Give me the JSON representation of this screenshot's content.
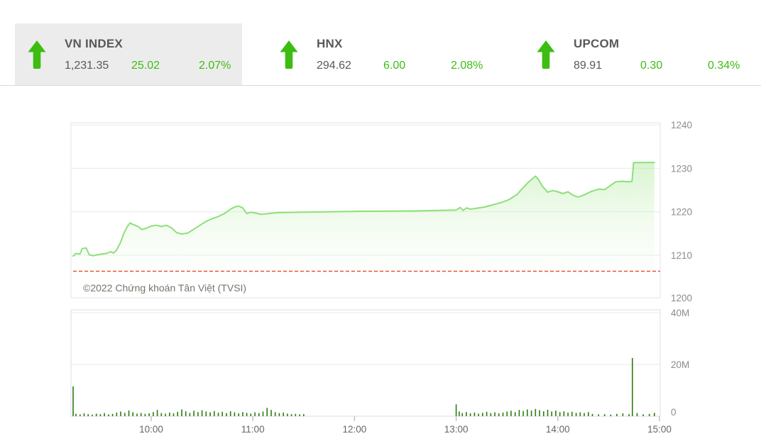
{
  "colors": {
    "up_green": "#3dbd12",
    "price_line": "#8ce07a",
    "area_fill_top": "rgba(150,226,125,0.60)",
    "area_fill_bottom": "rgba(255,255,255,0.05)",
    "volume_bar": "#2d7d12",
    "reference_red": "#e8391d",
    "grid_line": "#e9e9e9",
    "panel_border": "#e3e3e3",
    "volume_panel_border": "#d8dfe6",
    "tick_mark": "#b9c2cc",
    "axis_text": "#8c8c8c",
    "xaxis_text": "#666666",
    "value_text": "#58595b",
    "active_panel_bg": "#ececec"
  },
  "index_bar": {
    "panels": [
      {
        "id": "vnindex",
        "name": "VN INDEX",
        "value": "1,231.35",
        "change": "25.02",
        "change_percent": "2.07%",
        "direction": "up",
        "active": true
      },
      {
        "id": "hnx",
        "name": "HNX",
        "value": "294.62",
        "change": "6.00",
        "change_percent": "2.08%",
        "direction": "up",
        "active": false
      },
      {
        "id": "upcom",
        "name": "UPCOM",
        "value": "89.91",
        "change": "0.30",
        "change_percent": "0.34%",
        "direction": "up",
        "active": false
      }
    ]
  },
  "chart": {
    "copyright": "©2022 Chứng khoán Tân Việt (TVSI)"
  },
  "chart_data": [
    {
      "type": "area",
      "name": "VN-Index intraday price",
      "x_unit": "hour_of_day",
      "ylim": [
        1200,
        1243
      ],
      "yticks": [
        1240,
        1230,
        1220,
        1210,
        1200
      ],
      "xticks": [
        {
          "t": 10,
          "label": "10:00"
        },
        {
          "t": 11,
          "label": "11:00"
        },
        {
          "t": 12,
          "label": "12:00"
        },
        {
          "t": 13,
          "label": "13:00"
        },
        {
          "t": 14,
          "label": "14:00"
        },
        {
          "t": 15,
          "label": "15:00"
        }
      ],
      "reference_line": 1206.33,
      "grid": true,
      "legend": false,
      "points": [
        [
          9.232,
          1209.8
        ],
        [
          9.26,
          1210.4
        ],
        [
          9.3,
          1210.3
        ],
        [
          9.32,
          1211.5
        ],
        [
          9.36,
          1211.7
        ],
        [
          9.39,
          1210.1
        ],
        [
          9.43,
          1209.9
        ],
        [
          9.47,
          1210.1
        ],
        [
          9.52,
          1210.3
        ],
        [
          9.56,
          1210.4
        ],
        [
          9.6,
          1210.8
        ],
        [
          9.63,
          1210.5
        ],
        [
          9.66,
          1211.2
        ],
        [
          9.7,
          1213.0
        ],
        [
          9.73,
          1215.0
        ],
        [
          9.76,
          1216.4
        ],
        [
          9.79,
          1217.4
        ],
        [
          9.83,
          1217.0
        ],
        [
          9.87,
          1216.6
        ],
        [
          9.91,
          1215.9
        ],
        [
          9.95,
          1216.2
        ],
        [
          10.0,
          1216.7
        ],
        [
          10.05,
          1216.9
        ],
        [
          10.1,
          1216.6
        ],
        [
          10.15,
          1216.9
        ],
        [
          10.2,
          1216.3
        ],
        [
          10.25,
          1215.2
        ],
        [
          10.3,
          1214.9
        ],
        [
          10.36,
          1215.1
        ],
        [
          10.42,
          1216.0
        ],
        [
          10.48,
          1216.9
        ],
        [
          10.54,
          1217.8
        ],
        [
          10.6,
          1218.4
        ],
        [
          10.66,
          1218.9
        ],
        [
          10.72,
          1219.6
        ],
        [
          10.78,
          1220.6
        ],
        [
          10.82,
          1221.1
        ],
        [
          10.86,
          1221.3
        ],
        [
          10.9,
          1220.9
        ],
        [
          10.94,
          1219.6
        ],
        [
          10.98,
          1219.9
        ],
        [
          11.03,
          1219.7
        ],
        [
          11.08,
          1219.4
        ],
        [
          11.15,
          1219.6
        ],
        [
          11.25,
          1219.8
        ],
        [
          11.5,
          1219.9
        ],
        [
          12.0,
          1220.1
        ],
        [
          12.6,
          1220.2
        ],
        [
          13.0,
          1220.4
        ],
        [
          13.04,
          1221.0
        ],
        [
          13.07,
          1220.3
        ],
        [
          13.1,
          1220.9
        ],
        [
          13.14,
          1220.6
        ],
        [
          13.2,
          1220.8
        ],
        [
          13.28,
          1221.1
        ],
        [
          13.36,
          1221.6
        ],
        [
          13.44,
          1222.1
        ],
        [
          13.52,
          1222.8
        ],
        [
          13.6,
          1224.0
        ],
        [
          13.66,
          1225.6
        ],
        [
          13.71,
          1226.8
        ],
        [
          13.75,
          1227.6
        ],
        [
          13.78,
          1228.2
        ],
        [
          13.81,
          1227.4
        ],
        [
          13.85,
          1225.8
        ],
        [
          13.9,
          1224.5
        ],
        [
          13.95,
          1224.9
        ],
        [
          14.0,
          1224.6
        ],
        [
          14.05,
          1224.2
        ],
        [
          14.1,
          1224.6
        ],
        [
          14.15,
          1223.8
        ],
        [
          14.2,
          1223.4
        ],
        [
          14.26,
          1223.9
        ],
        [
          14.33,
          1224.7
        ],
        [
          14.4,
          1225.2
        ],
        [
          14.46,
          1225.1
        ],
        [
          14.52,
          1226.1
        ],
        [
          14.57,
          1226.9
        ],
        [
          14.63,
          1227.0
        ],
        [
          14.7,
          1226.9
        ],
        [
          14.73,
          1227.0
        ],
        [
          14.745,
          1231.3
        ],
        [
          14.95,
          1231.35
        ]
      ]
    },
    {
      "type": "bar",
      "name": "Trading volume",
      "unit": "millions_of_shares",
      "ylim_millions": [
        0,
        41
      ],
      "yticks": [
        {
          "v": 40,
          "label": "40M"
        },
        {
          "v": 20,
          "label": "20M"
        },
        {
          "v": 0,
          "label": "0"
        }
      ],
      "points": [
        [
          9.232,
          11.5
        ],
        [
          9.26,
          0.9
        ],
        [
          9.3,
          0.7
        ],
        [
          9.34,
          1.1
        ],
        [
          9.38,
          0.8
        ],
        [
          9.42,
          0.6
        ],
        [
          9.46,
          1.0
        ],
        [
          9.5,
          0.8
        ],
        [
          9.54,
          1.2
        ],
        [
          9.58,
          0.7
        ],
        [
          9.62,
          0.9
        ],
        [
          9.66,
          1.4
        ],
        [
          9.7,
          1.8
        ],
        [
          9.74,
          1.3
        ],
        [
          9.78,
          2.2
        ],
        [
          9.82,
          1.5
        ],
        [
          9.86,
          1.0
        ],
        [
          9.9,
          1.2
        ],
        [
          9.94,
          0.9
        ],
        [
          9.98,
          1.1
        ],
        [
          10.02,
          1.6
        ],
        [
          10.06,
          2.4
        ],
        [
          10.1,
          1.2
        ],
        [
          10.14,
          1.0
        ],
        [
          10.18,
          1.4
        ],
        [
          10.22,
          1.1
        ],
        [
          10.26,
          1.7
        ],
        [
          10.3,
          2.6
        ],
        [
          10.34,
          1.9
        ],
        [
          10.38,
          1.3
        ],
        [
          10.42,
          2.1
        ],
        [
          10.46,
          1.6
        ],
        [
          10.5,
          2.3
        ],
        [
          10.54,
          1.8
        ],
        [
          10.58,
          1.5
        ],
        [
          10.62,
          2.0
        ],
        [
          10.66,
          1.4
        ],
        [
          10.7,
          1.7
        ],
        [
          10.74,
          1.2
        ],
        [
          10.78,
          1.9
        ],
        [
          10.82,
          1.5
        ],
        [
          10.86,
          1.1
        ],
        [
          10.9,
          1.6
        ],
        [
          10.94,
          1.3
        ],
        [
          10.98,
          1.0
        ],
        [
          11.02,
          1.5
        ],
        [
          11.06,
          1.2
        ],
        [
          11.1,
          1.8
        ],
        [
          11.14,
          3.2
        ],
        [
          11.18,
          2.4
        ],
        [
          11.22,
          1.6
        ],
        [
          11.26,
          1.2
        ],
        [
          11.3,
          1.4
        ],
        [
          11.34,
          1.0
        ],
        [
          11.38,
          0.8
        ],
        [
          11.42,
          0.9
        ],
        [
          11.46,
          0.7
        ],
        [
          11.5,
          0.8
        ],
        [
          13.0,
          4.6
        ],
        [
          13.03,
          1.8
        ],
        [
          13.06,
          1.2
        ],
        [
          13.1,
          1.6
        ],
        [
          13.14,
          1.1
        ],
        [
          13.18,
          1.4
        ],
        [
          13.22,
          1.0
        ],
        [
          13.26,
          1.3
        ],
        [
          13.3,
          1.7
        ],
        [
          13.34,
          1.2
        ],
        [
          13.38,
          1.5
        ],
        [
          13.42,
          1.1
        ],
        [
          13.46,
          1.4
        ],
        [
          13.5,
          1.8
        ],
        [
          13.54,
          2.1
        ],
        [
          13.58,
          1.6
        ],
        [
          13.62,
          2.4
        ],
        [
          13.66,
          2.0
        ],
        [
          13.7,
          2.6
        ],
        [
          13.74,
          2.2
        ],
        [
          13.78,
          2.8
        ],
        [
          13.82,
          2.3
        ],
        [
          13.86,
          1.9
        ],
        [
          13.9,
          2.5
        ],
        [
          13.94,
          1.8
        ],
        [
          13.98,
          2.2
        ],
        [
          14.02,
          1.6
        ],
        [
          14.06,
          1.9
        ],
        [
          14.1,
          1.4
        ],
        [
          14.14,
          1.7
        ],
        [
          14.18,
          1.3
        ],
        [
          14.22,
          1.5
        ],
        [
          14.26,
          1.2
        ],
        [
          14.3,
          1.6
        ],
        [
          14.34,
          0.9
        ],
        [
          14.4,
          0.7
        ],
        [
          14.46,
          0.8
        ],
        [
          14.52,
          0.6
        ],
        [
          14.58,
          0.9
        ],
        [
          14.64,
          1.1
        ],
        [
          14.7,
          0.8
        ],
        [
          14.733,
          22.5
        ],
        [
          14.78,
          1.2
        ],
        [
          14.84,
          0.7
        ],
        [
          14.9,
          0.9
        ],
        [
          14.95,
          1.3
        ]
      ]
    }
  ]
}
